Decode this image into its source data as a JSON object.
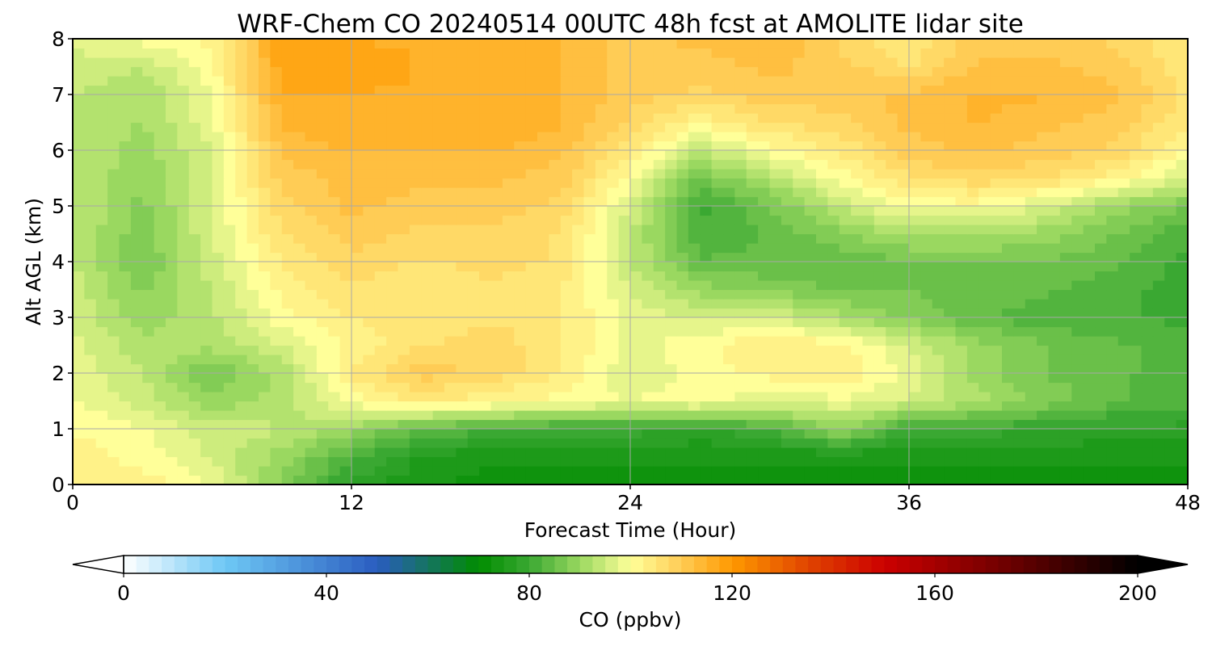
{
  "chart_data": {
    "type": "heatmap",
    "title": "WRF-Chem CO  20240514 00UTC 48h fcst at AMOLITE lidar site",
    "xlabel": "Forecast Time (Hour)",
    "ylabel": "Alt AGL (km)",
    "xlim": [
      0,
      48
    ],
    "ylim": [
      0,
      8
    ],
    "x_ticks": [
      0,
      12,
      24,
      36,
      48
    ],
    "y_ticks": [
      0,
      1,
      2,
      3,
      4,
      5,
      6,
      7,
      8
    ],
    "grid": true,
    "x_hours": [
      0,
      3,
      6,
      9,
      12,
      15,
      18,
      21,
      24,
      27,
      30,
      33,
      36,
      39,
      42,
      45,
      48
    ],
    "alt_km": [
      0.0,
      0.5,
      1.0,
      1.5,
      2.0,
      2.5,
      3.0,
      3.5,
      4.0,
      4.5,
      5.0,
      5.5,
      6.0,
      6.5,
      7.0,
      7.5,
      8.0
    ],
    "co_ppbv": [
      [
        104,
        103,
        98,
        88,
        78,
        74,
        73,
        73,
        73,
        73,
        73,
        73,
        73,
        73,
        73,
        73,
        73
      ],
      [
        103,
        100,
        96,
        90,
        82,
        76,
        74,
        74,
        74,
        74,
        74,
        74,
        74,
        74,
        74,
        74,
        74
      ],
      [
        101,
        99,
        95,
        94,
        90,
        84,
        82,
        80,
        80,
        78,
        82,
        90,
        80,
        80,
        79,
        78,
        78
      ],
      [
        99,
        95,
        90,
        92,
        100,
        104,
        102,
        100,
        99,
        100,
        97,
        98,
        96,
        92,
        88,
        84,
        82
      ],
      [
        98,
        94,
        86,
        92,
        104,
        110,
        108,
        104,
        96,
        100,
        102,
        104,
        98,
        90,
        86,
        84,
        83
      ],
      [
        97,
        92,
        92,
        96,
        102,
        106,
        108,
        104,
        98,
        100,
        104,
        102,
        96,
        90,
        86,
        84,
        83
      ],
      [
        96,
        90,
        93,
        100,
        104,
        104,
        106,
        104,
        98,
        96,
        96,
        92,
        88,
        84,
        82,
        82,
        80
      ],
      [
        95,
        88,
        94,
        102,
        106,
        104,
        106,
        104,
        96,
        90,
        88,
        86,
        86,
        86,
        84,
        82,
        80
      ],
      [
        94,
        86,
        95,
        104,
        108,
        106,
        107,
        106,
        94,
        84,
        84,
        84,
        86,
        86,
        86,
        84,
        80
      ],
      [
        94,
        87,
        96,
        106,
        110,
        108,
        108,
        106,
        94,
        82,
        84,
        88,
        92,
        92,
        90,
        86,
        82
      ],
      [
        94,
        88,
        96,
        108,
        112,
        110,
        110,
        108,
        96,
        80,
        86,
        94,
        100,
        100,
        96,
        90,
        86
      ],
      [
        94,
        89,
        96,
        110,
        112,
        112,
        112,
        110,
        100,
        86,
        92,
        100,
        106,
        108,
        106,
        102,
        96
      ],
      [
        94,
        90,
        96,
        112,
        114,
        114,
        114,
        112,
        104,
        94,
        100,
        104,
        110,
        112,
        110,
        108,
        100
      ],
      [
        94,
        91,
        98,
        114,
        116,
        116,
        116,
        114,
        108,
        102,
        106,
        108,
        112,
        114,
        112,
        110,
        104
      ],
      [
        94,
        91,
        99,
        116,
        116,
        116,
        116,
        114,
        110,
        108,
        110,
        110,
        112,
        114,
        114,
        112,
        106
      ],
      [
        96,
        94,
        100,
        118,
        118,
        116,
        116,
        114,
        110,
        110,
        112,
        110,
        106,
        112,
        112,
        110,
        104
      ],
      [
        96,
        100,
        102,
        118,
        116,
        116,
        116,
        114,
        110,
        112,
        114,
        108,
        104,
        110,
        110,
        108,
        104
      ]
    ],
    "colorbar": {
      "label": "CO  (ppbv)",
      "ticks": [
        0,
        40,
        80,
        120,
        160,
        200
      ],
      "range": [
        0,
        200
      ],
      "extend": "both",
      "stops": [
        {
          "v": 0,
          "c": "#ffffff"
        },
        {
          "v": 20,
          "c": "#6ec8f5"
        },
        {
          "v": 50,
          "c": "#2a5cc0"
        },
        {
          "v": 70,
          "c": "#008c00"
        },
        {
          "v": 80,
          "c": "#3aa832"
        },
        {
          "v": 90,
          "c": "#9ad860"
        },
        {
          "v": 100,
          "c": "#ffff99"
        },
        {
          "v": 110,
          "c": "#ffcc55"
        },
        {
          "v": 120,
          "c": "#ff9900"
        },
        {
          "v": 135,
          "c": "#e04400"
        },
        {
          "v": 150,
          "c": "#cc0000"
        },
        {
          "v": 175,
          "c": "#6a0000"
        },
        {
          "v": 200,
          "c": "#000000"
        }
      ]
    }
  }
}
